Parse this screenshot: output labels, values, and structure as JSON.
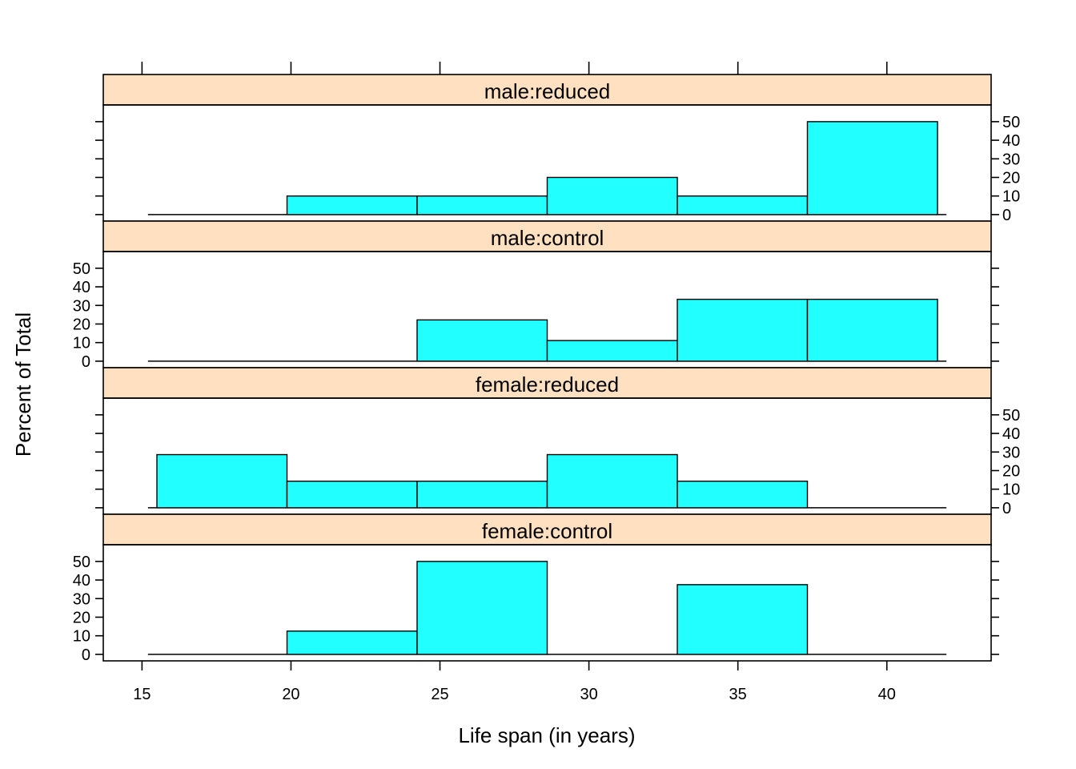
{
  "chart_data": {
    "type": "bar",
    "xlabel": "Life span (in years)",
    "ylabel": "Percent of Total",
    "xlim": [
      13.7,
      43.5
    ],
    "ylim": [
      -3.5,
      59
    ],
    "x_ticks": [
      15,
      20,
      25,
      30,
      35,
      40
    ],
    "y_ticks": [
      0,
      10,
      20,
      30,
      40,
      50
    ],
    "bin_edges": [
      15.5,
      19.867,
      24.233,
      28.6,
      32.967,
      37.333,
      41.7
    ],
    "baseline_range": [
      15.2,
      42.0
    ],
    "colors": {
      "bar": "#22ffff",
      "strip": "#ffe0c0",
      "frame": "#000000"
    },
    "panels": [
      {
        "name": "male:reduced",
        "values": [
          0,
          10,
          10,
          20,
          10,
          50
        ],
        "y_axis_side": "right"
      },
      {
        "name": "male:control",
        "values": [
          0,
          0,
          22.2,
          11.1,
          33.3,
          33.3
        ],
        "y_axis_side": "left"
      },
      {
        "name": "female:reduced",
        "values": [
          28.6,
          14.3,
          14.3,
          28.6,
          14.3,
          0
        ],
        "y_axis_side": "right"
      },
      {
        "name": "female:control",
        "values": [
          0,
          12.5,
          50,
          0,
          37.5,
          0
        ],
        "y_axis_side": "left"
      }
    ]
  }
}
